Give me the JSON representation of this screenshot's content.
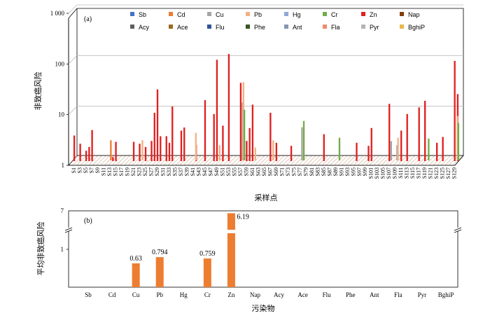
{
  "chart_data": [
    {
      "type": "bar",
      "panel_label": "(a)",
      "xlabel": "采样点",
      "ylabel": "非致癌风险",
      "ylim": [
        1,
        1000
      ],
      "yscale": "log",
      "yticks": [
        "1",
        "10",
        "100",
        "1 000"
      ],
      "legend_position": "top",
      "legend": [
        "Sb",
        "Cd",
        "Cu",
        "Pb",
        "Hg",
        "Cr",
        "Zn",
        "Nap",
        "Acy",
        "Ace",
        "Flu",
        "Phe",
        "Ant",
        "Fla",
        "Pyr",
        "BghiP"
      ],
      "colors": {
        "Sb": "#4472c4",
        "Cd": "#ed7d31",
        "Cu": "#a5a5a5",
        "Pb": "#f4b183",
        "Hg": "#8fa8d8",
        "Cr": "#70ad47",
        "Zn": "#e02020",
        "Nap": "#843c0c",
        "Acy": "#5e5e5e",
        "Ace": "#9c6a1c",
        "Flu": "#2f5597",
        "Phe": "#385723",
        "Ant": "#8497b0",
        "Fla": "#f08b6c",
        "Pyr": "#b4b4b4",
        "BghiP": "#e8b84a"
      },
      "categories": [
        "S1",
        "S3",
        "S5",
        "S7",
        "S9",
        "S11",
        "S13",
        "S15",
        "S17",
        "S19",
        "S21",
        "S23",
        "S25",
        "S27",
        "S29",
        "S31",
        "S33",
        "S35",
        "S37",
        "S39",
        "S41",
        "S43",
        "S45",
        "S47",
        "S49",
        "S51",
        "S53",
        "S55",
        "S57",
        "S59",
        "S61",
        "S63",
        "S65",
        "S67",
        "S69",
        "S71",
        "S73",
        "S75",
        "S77",
        "S79",
        "S81",
        "S83",
        "S85",
        "S87",
        "S89",
        "S91",
        "S93",
        "S95",
        "S97",
        "S99",
        "S101",
        "S103",
        "S105",
        "S107",
        "S109",
        "S111",
        "S113",
        "S115",
        "S117",
        "S119",
        "S121",
        "S123",
        "S125",
        "S127",
        "S129"
      ],
      "sites": 130,
      "zn_values": [
        3.2,
        1.0,
        2.2,
        1.0,
        1.6,
        1.9,
        4.1,
        1.0,
        1.0,
        1.0,
        1.0,
        1.0,
        1.0,
        1.2,
        2.4,
        1.0,
        1.0,
        1.0,
        1.0,
        1.0,
        2.4,
        1.0,
        2.2,
        1.0,
        1.9,
        1.0,
        2.5,
        9.0,
        26.0,
        3.1,
        1.0,
        3.1,
        2.3,
        12.0,
        1.0,
        1.0,
        4.0,
        4.6,
        1.0,
        1.0,
        1.0,
        2.1,
        1.0,
        1.0,
        16.0,
        1.0,
        1.0,
        8.5,
        100.0,
        1.0,
        5.0,
        1.0,
        130.0,
        1.0,
        1.0,
        1.0,
        35.0,
        1.0,
        2.5,
        4.5,
        13.0,
        1.0,
        1.0,
        1.0,
        1.0,
        1.0,
        9.0,
        1.0,
        2.3,
        1.0,
        1.0,
        1.0,
        1.0,
        2.0,
        1.0,
        1.0,
        1.0,
        1.0,
        1.0,
        1.0,
        1.0,
        1.0,
        1.0,
        1.0,
        3.4,
        1.0,
        1.0,
        1.0,
        1.0,
        1.0,
        1.0,
        1.0,
        1.0,
        1.0,
        1.0,
        2.3,
        1.0,
        1.0,
        1.0,
        2.0,
        4.5,
        1.0,
        1.0,
        1.0,
        1.0,
        1.0,
        13.5,
        1.0,
        1.0,
        1.0,
        4.0,
        1.0,
        8.5,
        1.0,
        1.0,
        1.0,
        11.5,
        1.0,
        15.5,
        1.0,
        1.0,
        1.0,
        2.3,
        1.0,
        3.0,
        1.0,
        1.0,
        1.0,
        95.0,
        21.0
      ],
      "other_values": {
        "Cd": [
          1,
          1,
          1,
          1,
          1,
          1,
          2.5,
          1,
          1,
          1,
          1,
          1,
          1,
          1,
          1,
          1,
          1,
          1,
          1,
          1,
          1,
          1,
          1,
          1,
          1,
          1,
          1,
          1,
          1,
          1,
          1,
          1,
          1,
          1,
          1,
          1,
          1,
          1,
          1,
          1,
          1,
          1,
          1,
          1,
          1,
          1,
          1,
          1,
          1,
          1,
          1,
          1,
          1,
          1,
          1,
          1,
          1,
          1,
          1,
          1,
          1,
          1,
          1,
          1,
          1
        ],
        "Cu": [
          1,
          1,
          1,
          1,
          1,
          1,
          1,
          1,
          1,
          1,
          1,
          1,
          1,
          1,
          1,
          1,
          1,
          1,
          1,
          1,
          1,
          1,
          1,
          1,
          1,
          1,
          1,
          1,
          14,
          1,
          1,
          1,
          1,
          1,
          1,
          1,
          1,
          1,
          4.5,
          1,
          1,
          1,
          1,
          1,
          1,
          1,
          1,
          1,
          1,
          1,
          1,
          1,
          1,
          2.4,
          2,
          1,
          1,
          1,
          1,
          1,
          1,
          1,
          1,
          1,
          1
        ],
        "Pb": [
          1,
          1,
          1,
          1,
          1,
          1,
          1,
          1,
          1,
          1,
          1,
          2.5,
          1,
          1,
          1,
          1,
          1,
          1,
          1,
          1,
          3.5,
          1,
          1,
          1,
          2,
          1,
          1,
          1,
          35,
          1,
          1.8,
          1,
          1,
          2.5,
          1,
          1,
          1,
          1,
          1,
          1,
          1,
          1,
          1,
          1,
          1,
          1,
          1,
          1,
          1,
          1,
          1,
          1,
          1,
          1,
          2.8,
          1,
          1,
          1,
          1,
          1,
          1,
          1,
          1,
          1,
          7.5
        ],
        "Cr": [
          1,
          1,
          1,
          1,
          1,
          1,
          1,
          1,
          1,
          1,
          1,
          1,
          1,
          1,
          1,
          1,
          1,
          1,
          1,
          1,
          1,
          1,
          1,
          1,
          1,
          1,
          1,
          1,
          10,
          1,
          1,
          1,
          1,
          1,
          1,
          1,
          1,
          1,
          6,
          1,
          1,
          1,
          1,
          1,
          2.8,
          1,
          1,
          1,
          1,
          1,
          1,
          1,
          1,
          1,
          1,
          1,
          1,
          1,
          1,
          2.7,
          1,
          1,
          1,
          1,
          5.5
        ]
      }
    },
    {
      "type": "bar",
      "panel_label": "(b)",
      "xlabel": "污染物",
      "ylabel": "平均非致癌风险",
      "yticks": [
        "1",
        "7"
      ],
      "y_axis_break": true,
      "categories": [
        "Sb",
        "Cd",
        "Cu",
        "Pb",
        "Hg",
        "Cr",
        "Zn",
        "Nap",
        "Acy",
        "Ace",
        "Flu",
        "Phe",
        "Ant",
        "Fla",
        "Pyr",
        "BghiP"
      ],
      "values": [
        0,
        0,
        0.63,
        0.794,
        0,
        0.759,
        6.19,
        0,
        0,
        0,
        0,
        0,
        0,
        0,
        0,
        0
      ],
      "data_labels": {
        "Cu": "0.63",
        "Pb": "0.794",
        "Cr": "0.759",
        "Zn": "6.19"
      },
      "bar_color": "#ed7d31"
    }
  ]
}
